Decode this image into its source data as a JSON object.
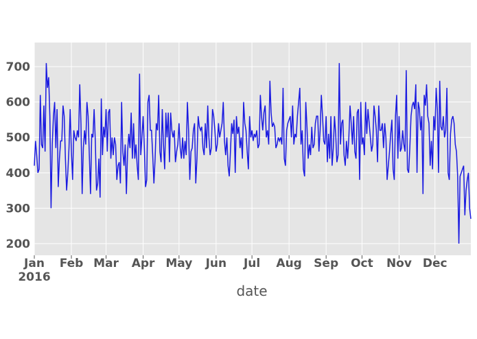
{
  "chart_data": {
    "type": "line",
    "x_label": "date",
    "xticks": [
      {
        "value": "2016-01",
        "label": "Jan\n2016"
      },
      {
        "value": "2016-02",
        "label": "Feb"
      },
      {
        "value": "2016-03",
        "label": "Mar"
      },
      {
        "value": "2016-04",
        "label": "Apr"
      },
      {
        "value": "2016-05",
        "label": "May"
      },
      {
        "value": "2016-06",
        "label": "Jun"
      },
      {
        "value": "2016-07",
        "label": "Jul"
      },
      {
        "value": "2016-08",
        "label": "Aug"
      },
      {
        "value": "2016-09",
        "label": "Sep"
      },
      {
        "value": "2016-10",
        "label": "Oct"
      },
      {
        "value": "2016-11",
        "label": "Nov"
      },
      {
        "value": "2016-12",
        "label": "Dec"
      }
    ],
    "ylim": [
      167,
      768
    ],
    "yticks": [
      200,
      300,
      400,
      500,
      600,
      700
    ],
    "grid": true,
    "color": "#1a1ae0",
    "values": [
      420,
      490,
      450,
      400,
      410,
      620,
      480,
      470,
      590,
      460,
      710,
      640,
      670,
      560,
      300,
      480,
      560,
      600,
      470,
      580,
      360,
      440,
      490,
      490,
      590,
      560,
      440,
      350,
      400,
      470,
      580,
      460,
      380,
      520,
      500,
      490,
      520,
      500,
      650,
      540,
      340,
      470,
      520,
      480,
      600,
      560,
      450,
      340,
      510,
      500,
      580,
      490,
      350,
      370,
      440,
      330,
      610,
      450,
      530,
      500,
      580,
      460,
      570,
      580,
      440,
      500,
      450,
      500,
      480,
      380,
      420,
      430,
      370,
      600,
      460,
      420,
      480,
      340,
      460,
      510,
      470,
      570,
      440,
      540,
      440,
      480,
      420,
      380,
      680,
      450,
      500,
      560,
      470,
      360,
      380,
      600,
      620,
      520,
      520,
      450,
      370,
      440,
      540,
      520,
      620,
      460,
      430,
      580,
      480,
      410,
      570,
      500,
      570,
      430,
      570,
      520,
      500,
      520,
      430,
      460,
      480,
      540,
      470,
      440,
      500,
      440,
      490,
      450,
      600,
      520,
      380,
      460,
      470,
      520,
      540,
      370,
      440,
      560,
      530,
      520,
      530,
      470,
      450,
      540,
      470,
      590,
      500,
      450,
      470,
      580,
      560,
      520,
      460,
      480,
      540,
      500,
      520,
      540,
      600,
      490,
      450,
      500,
      420,
      390,
      460,
      540,
      510,
      550,
      400,
      560,
      510,
      530,
      470,
      500,
      440,
      600,
      540,
      520,
      460,
      410,
      560,
      500,
      520,
      490,
      510,
      500,
      520,
      470,
      480,
      620,
      560,
      520,
      570,
      590,
      500,
      520,
      480,
      660,
      570,
      530,
      540,
      530,
      470,
      480,
      500,
      490,
      500,
      480,
      640,
      440,
      420,
      520,
      540,
      550,
      560,
      500,
      590,
      480,
      510,
      500,
      560,
      600,
      640,
      480,
      520,
      410,
      390,
      600,
      530,
      440,
      480,
      450,
      530,
      470,
      480,
      540,
      560,
      560,
      460,
      520,
      620,
      560,
      490,
      480,
      560,
      430,
      510,
      440,
      560,
      420,
      470,
      560,
      510,
      430,
      450,
      710,
      480,
      540,
      550,
      450,
      420,
      490,
      440,
      500,
      590,
      540,
      480,
      560,
      460,
      440,
      570,
      580,
      380,
      600,
      480,
      500,
      450,
      600,
      510,
      580,
      540,
      500,
      460,
      480,
      590,
      560,
      520,
      430,
      590,
      520,
      520,
      540,
      470,
      540,
      500,
      380,
      420,
      460,
      510,
      550,
      410,
      380,
      560,
      620,
      440,
      560,
      460,
      470,
      520,
      480,
      460,
      690,
      410,
      400,
      470,
      560,
      590,
      600,
      580,
      650,
      400,
      600,
      580,
      520,
      560,
      340,
      620,
      590,
      650,
      560,
      540,
      420,
      490,
      410,
      560,
      520,
      640,
      580,
      400,
      660,
      530,
      520,
      560,
      500,
      520,
      640,
      400,
      380,
      510,
      550,
      560,
      540,
      480,
      460,
      390,
      200,
      390,
      400,
      410,
      420,
      280,
      350,
      380,
      400,
      300,
      270
    ]
  }
}
